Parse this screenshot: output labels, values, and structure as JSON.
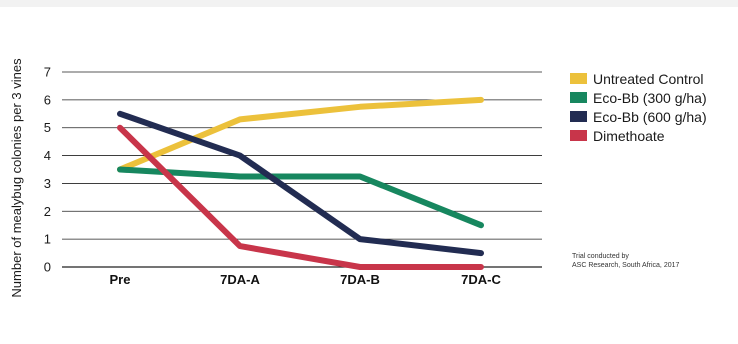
{
  "chart_data": {
    "type": "line",
    "title": "",
    "xlabel": "",
    "ylabel": "Number of mealybug colonies per 3 vines",
    "categories": [
      "Pre",
      "7DA-A",
      "7DA-B",
      "7DA-C"
    ],
    "yticks": [
      0,
      1,
      2,
      3,
      4,
      5,
      6,
      7
    ],
    "ylim": [
      0,
      7
    ],
    "grid": "horizontal",
    "legend_position": "right",
    "series": [
      {
        "name": "Untreated Control",
        "color": "#ecc13b",
        "values": [
          3.5,
          5.3,
          5.75,
          6.0
        ]
      },
      {
        "name": "Eco-Bb (300 g/ha)",
        "color": "#17875f",
        "values": [
          3.5,
          3.25,
          3.25,
          1.5
        ]
      },
      {
        "name": "Eco-Bb (600 g/ha)",
        "color": "#222c52",
        "values": [
          5.5,
          4.0,
          1.0,
          0.5
        ]
      },
      {
        "name": "Dimethoate",
        "color": "#c8354a",
        "values": [
          5.0,
          0.75,
          0.0,
          0.0
        ]
      }
    ]
  },
  "note": {
    "line1": "Trial conducted by",
    "line2": "ASC Research, South Africa, 2017"
  }
}
